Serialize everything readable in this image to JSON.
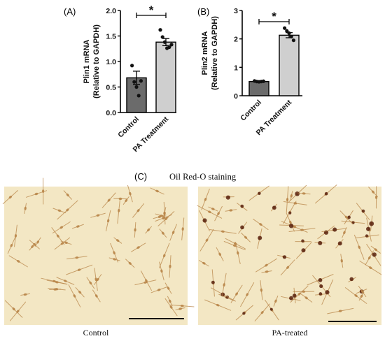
{
  "chart_data": [
    {
      "type": "bar",
      "panel": "A",
      "categories": [
        "Control",
        "PA Treatment"
      ],
      "values": [
        0.68,
        1.38
      ],
      "sem": [
        0.13,
        0.07
      ],
      "points": [
        [
          0.92,
          0.6,
          0.5,
          0.33,
          0.62
        ],
        [
          1.62,
          1.48,
          1.38,
          1.26,
          1.28,
          1.33
        ]
      ],
      "ylabel_line1": "Plin1 mRNA",
      "ylabel_line2": "(Relative to GAPDH)",
      "ylim": [
        0,
        2.0
      ],
      "yticks": [
        "0.0",
        "0.5",
        "1.0",
        "1.5",
        "2.0"
      ],
      "significance": "*",
      "bar_colors": [
        "#6b6b6b",
        "#cfcfcf"
      ]
    },
    {
      "type": "bar",
      "panel": "B",
      "categories": [
        "Control",
        "PA Treatment"
      ],
      "values": [
        0.5,
        2.13
      ],
      "sem": [
        0.02,
        0.09
      ],
      "points": [
        [
          0.52,
          0.5,
          0.49,
          0.5,
          0.51
        ],
        [
          2.38,
          2.28,
          2.2,
          2.08,
          1.95
        ]
      ],
      "ylabel_line1": "Plin2 mRNA",
      "ylabel_line2": "(Relative to GAPDH)",
      "ylim": [
        0,
        3
      ],
      "yticks": [
        "0",
        "1",
        "2",
        "3"
      ],
      "significance": "*",
      "bar_colors": [
        "#6b6b6b",
        "#cfcfcf"
      ]
    }
  ],
  "labels": {
    "panel_a": "(A)",
    "panel_b": "(B)",
    "panel_c": "(C)",
    "staining_title": "Oil Red-O staining",
    "caption_left": "Control",
    "caption_right": "PA-treated"
  },
  "colors": {
    "photo_background": "#f3e7c4",
    "cell_stain": "#b9864a",
    "lipid_droplet": "#5a2412"
  }
}
